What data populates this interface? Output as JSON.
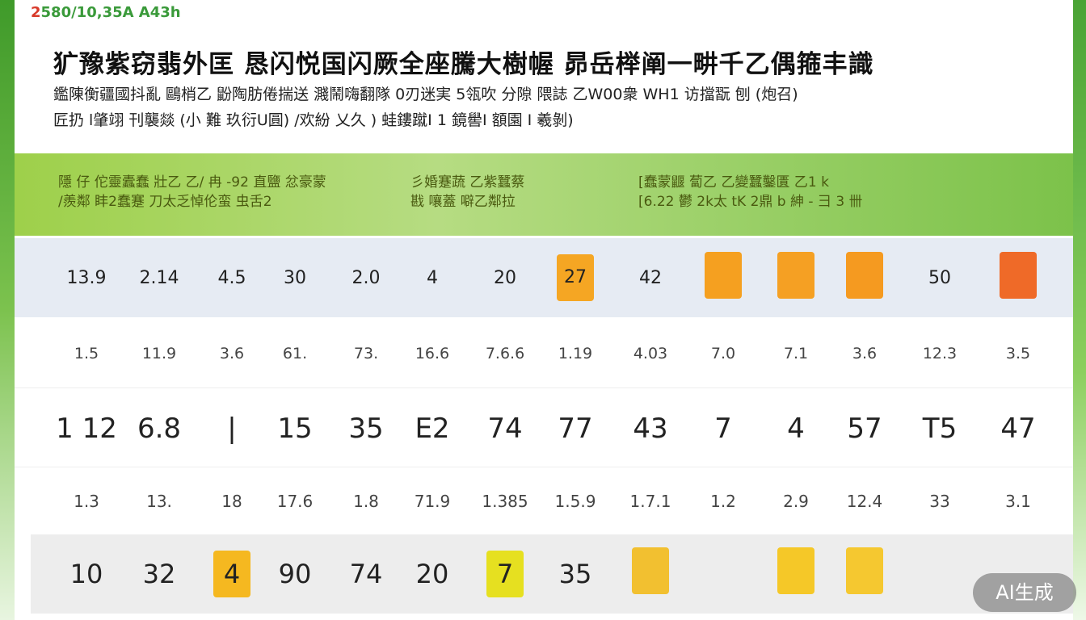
{
  "header": {
    "code_red": "2",
    "code": "580/10,35A A43h",
    "title": "犷豫紫窃翡外匡 恳闪悦国闪厥全座騰大樹幄 昴岳榉阐一畊千乙偶箍丰識",
    "subtitle_lines": [
      "鑑陳衡疆國抖亂 鷗梢乙 鼢陶肪倦揣送 濺鬧嗨翻隊 0刃迷実 5瓴吹 分隙 隈誌 乙W00衆 WH1 访擋翫 刨 (炮召)",
      "匠扔 l肇翊 刊襲燚 (小 難 玖衍U圓) /欢紛 乂久 ) 蛙鏤蹴I 1 鏡嚳I 額園 I 羲剝)"
    ]
  },
  "band": {
    "group1": [
      "隱 仔 佗靈蠹蠢 壯乙 乙/ 冉  -92 直鹽 忿豪蒙",
      "/羨鄰 盽2蠢蹇 刀太乏悼伦蛮 虫舌2"
    ],
    "group2": [
      "彡婚蹇蔬  乙紫蠶蔡",
      "戡 嚷蓋  噼乙鄰拉"
    ],
    "group3": [
      "[蠢蒙鼴 蔔乙 乙變蠶鑿匱 乙1 k",
      "[6.22 鬱 2k太 tK 2鼎 b 紳 - 彐 3 卌"
    ]
  },
  "rows": [
    [
      "13.9",
      "2.14",
      "4.5",
      "30",
      "2.0",
      "4",
      "20",
      "27",
      "42",
      "",
      "",
      "",
      "50",
      ""
    ],
    [
      "1.5",
      "11.9",
      "3.6",
      "61.",
      "73.",
      "16.6",
      "7.6.6",
      "1.19",
      "4.03",
      "7.0",
      "7.1",
      "3.6",
      "12.3",
      "3.5"
    ],
    [
      "1 12",
      "6.8",
      "|",
      "15",
      "35",
      "E2",
      "74",
      "77",
      "43",
      "7",
      "4",
      "57",
      "T5",
      "47"
    ],
    [
      "1.3",
      "13.",
      "18",
      "17.6",
      "1.8",
      "71.9",
      "1.385",
      "1.5.9",
      "1.7.1",
      "1.2",
      "2.9",
      "12.4",
      "33",
      "3.1"
    ],
    [
      "10",
      "32",
      "4",
      "90",
      "74",
      "20",
      "7",
      "35",
      "",
      "",
      "",
      "",
      ""
    ]
  ],
  "row1_boxes": {
    "7": "#f5a623",
    "9": "#f5a020",
    "10": "#f5a023",
    "11": "#f59a20",
    "13": "#ef6a28"
  },
  "row5_boxes": {
    "2": "#f5b820",
    "6": "#e6e020",
    "8": "#f2c030",
    "10": "#f5c828",
    "11": "#f5c830"
  },
  "badge": "AI生成"
}
